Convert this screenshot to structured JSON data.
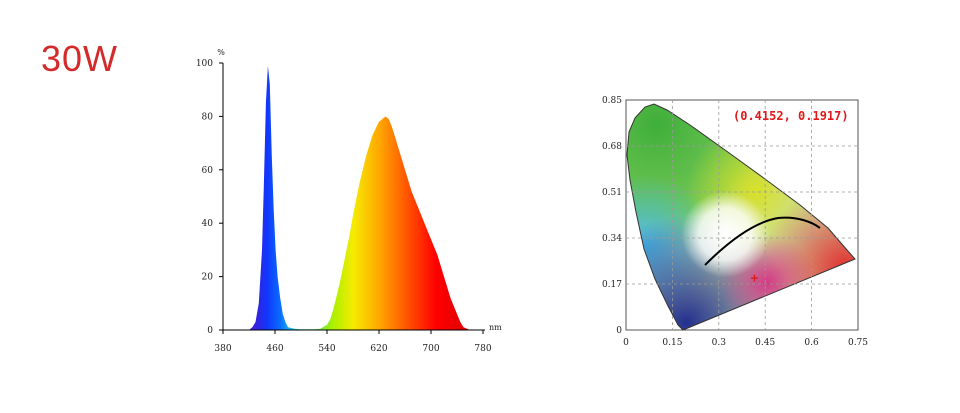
{
  "header": {
    "wattage": "30W"
  },
  "chart_data": [
    {
      "type": "area",
      "title": "",
      "xlabel": "nm",
      "ylabel": "%",
      "xlim": [
        380,
        780
      ],
      "ylim": [
        0,
        100
      ],
      "xticks": [
        380,
        460,
        540,
        620,
        700,
        780
      ],
      "yticks": [
        0,
        20,
        40,
        60,
        80,
        100
      ],
      "series": [
        {
          "x": [
            380,
            420,
            425,
            430,
            435,
            440,
            443,
            446,
            449,
            452,
            455,
            458,
            461,
            464,
            468,
            472,
            476,
            480,
            490,
            500,
            510,
            520,
            530,
            540,
            545,
            550,
            555,
            560,
            565,
            570,
            575,
            580,
            590,
            600,
            610,
            620,
            630,
            635,
            640,
            645,
            650,
            655,
            660,
            665,
            670,
            680,
            690,
            700,
            710,
            720,
            730,
            740,
            745,
            750,
            760,
            780
          ],
          "y": [
            0,
            0,
            1,
            3,
            10,
            30,
            55,
            85,
            99,
            92,
            65,
            45,
            30,
            20,
            12,
            6,
            3,
            1,
            0.5,
            0.3,
            0.3,
            0.3,
            0.5,
            2,
            4,
            8,
            13,
            18,
            24,
            30,
            36,
            43,
            55,
            65,
            73,
            78,
            80,
            79,
            76,
            72,
            68,
            64,
            60,
            56,
            52,
            46,
            40,
            34,
            28,
            20,
            12,
            6,
            3,
            1,
            0,
            0
          ]
        }
      ],
      "grid": false
    },
    {
      "type": "scatter",
      "title": "",
      "xlim": [
        0,
        0.75
      ],
      "ylim": [
        0,
        0.85
      ],
      "xticks": [
        "0",
        "0.15",
        "0.3",
        "0.45",
        "0.6",
        "0.75"
      ],
      "yticks": [
        "0",
        "0.17",
        "0.34",
        "0.51",
        "0.68",
        "0.85"
      ],
      "grid": true,
      "series": [
        {
          "x": [
            0.4152
          ],
          "y": [
            0.1917
          ]
        }
      ],
      "annotation": "(0.4152, 0.1917)"
    }
  ]
}
